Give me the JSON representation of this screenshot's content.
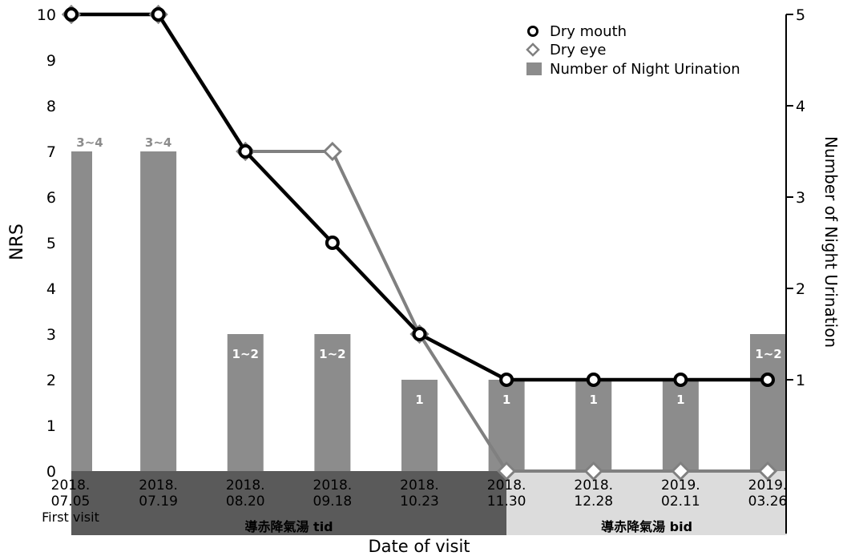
{
  "chart_data": {
    "type": "bar+line",
    "categories": [
      [
        "2018.",
        "07.05"
      ],
      [
        "2018.",
        "07.19"
      ],
      [
        "2018.",
        "08.20"
      ],
      [
        "2018.",
        "09.18"
      ],
      [
        "2018.",
        "10.23"
      ],
      [
        "2018.",
        "11.30"
      ],
      [
        "2018.",
        "12.28"
      ],
      [
        "2019.",
        "02.11"
      ],
      [
        "2019.",
        "03.26"
      ]
    ],
    "first_visit_label": "First visit",
    "xlabel": "Date of visit",
    "ylabel_left": "NRS",
    "ylabel_right": "Number of Night Urination",
    "ylim_left": [
      0,
      10
    ],
    "ylim_right": [
      0,
      5
    ],
    "yticks_left": [
      "0",
      "1",
      "2",
      "3",
      "4",
      "5",
      "6",
      "7",
      "8",
      "9",
      "10"
    ],
    "yticks_right": [
      "1",
      "2",
      "3",
      "4",
      "5"
    ],
    "bars": {
      "name": "Number of Night Urination",
      "values_nrs": [
        7,
        7,
        3,
        3,
        2,
        2,
        2,
        2,
        3
      ],
      "labels": [
        "3~4",
        "3~4",
        "1~2",
        "1~2",
        "1",
        "1",
        "1",
        "1",
        "1~2"
      ],
      "color": "#8c8c8c"
    },
    "series": [
      {
        "name": "Dry mouth",
        "values": [
          10,
          10,
          7,
          5,
          3,
          2,
          2,
          2,
          2
        ],
        "color": "#000000",
        "marker": "circle"
      },
      {
        "name": "Dry eye",
        "values": [
          10,
          10,
          7,
          7,
          3,
          0,
          0,
          0,
          0
        ],
        "color": "#808080",
        "marker": "diamond"
      }
    ],
    "treatment_bands": [
      {
        "label": "導赤降氣湯 tid",
        "from_index": 0,
        "to_index": 5,
        "color": "#5a5a5a",
        "text_color": "#000000"
      },
      {
        "label": "導赤降氣湯 bid",
        "from_index": 5,
        "to_index": 8,
        "color": "#dcdcdc",
        "text_color": "#000000"
      }
    ],
    "legend_position": "top-right",
    "grid": false
  }
}
